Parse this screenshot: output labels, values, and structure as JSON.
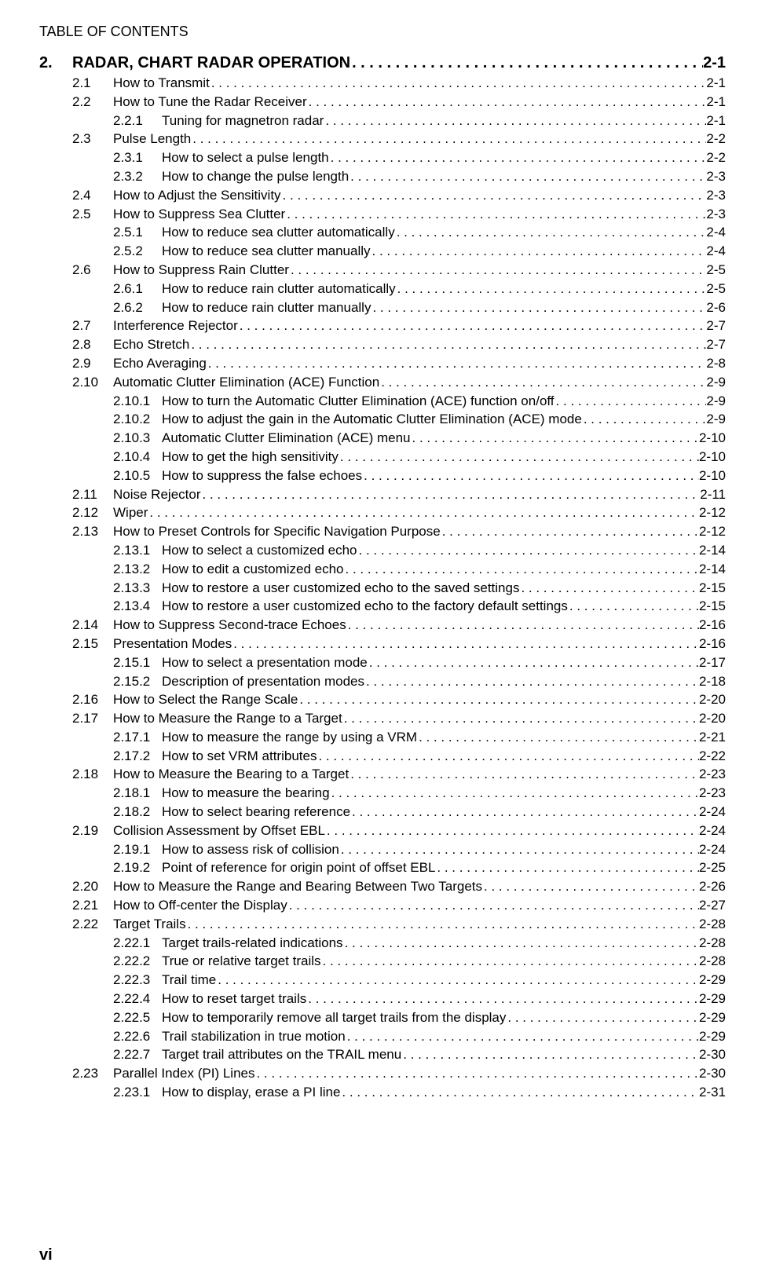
{
  "tocTitle": "TABLE OF CONTENTS",
  "pageNumber": "vi",
  "dots": ". . . . . . . . . . . . . . . . . . . . . . . . . . . . . . . . . . . . . . . . . . . . . . . . . . . . . . . . . . . . . . . . . . . . . . . . . . . . . . . . . . . . . . . . . . . . . . . . . . . . . . . . . . . . . . . . . . . . . . . . .",
  "chapter": {
    "num": "2.",
    "title": "RADAR, CHART RADAR OPERATION",
    "page": "2-1"
  },
  "entries": [
    {
      "type": "section",
      "num": "2.1",
      "title": "How to Transmit",
      "page": "2-1"
    },
    {
      "type": "section",
      "num": "2.2",
      "title": "How to Tune the Radar Receiver",
      "page": "2-1"
    },
    {
      "type": "subsection",
      "num": "2.2.1",
      "title": "Tuning for magnetron radar",
      "page": "2-1"
    },
    {
      "type": "section",
      "num": "2.3",
      "title": "Pulse Length",
      "page": "2-2"
    },
    {
      "type": "subsection",
      "num": "2.3.1",
      "title": "How to select a pulse length",
      "page": "2-2"
    },
    {
      "type": "subsection",
      "num": "2.3.2",
      "title": "How to change the pulse length",
      "page": "2-3"
    },
    {
      "type": "section",
      "num": "2.4",
      "title": "How to Adjust the Sensitivity",
      "page": "2-3"
    },
    {
      "type": "section",
      "num": "2.5",
      "title": "How to Suppress Sea Clutter",
      "page": "2-3"
    },
    {
      "type": "subsection",
      "num": "2.5.1",
      "title": "How to reduce sea clutter automatically",
      "page": "2-4"
    },
    {
      "type": "subsection",
      "num": "2.5.2",
      "title": "How to reduce sea clutter manually",
      "page": "2-4"
    },
    {
      "type": "section",
      "num": "2.6",
      "title": "How to Suppress Rain Clutter",
      "page": "2-5"
    },
    {
      "type": "subsection",
      "num": "2.6.1",
      "title": "How to reduce rain clutter automatically",
      "page": "2-5"
    },
    {
      "type": "subsection",
      "num": "2.6.2",
      "title": "How to reduce rain clutter manually",
      "page": "2-6"
    },
    {
      "type": "section",
      "num": "2.7",
      "title": "Interference Rejector",
      "page": "2-7"
    },
    {
      "type": "section",
      "num": "2.8",
      "title": "Echo Stretch",
      "page": "2-7"
    },
    {
      "type": "section",
      "num": "2.9",
      "title": "Echo Averaging",
      "page": "2-8"
    },
    {
      "type": "section",
      "num": "2.10",
      "title": "Automatic Clutter Elimination (ACE) Function",
      "page": "2-9"
    },
    {
      "type": "subsection",
      "num": "2.10.1",
      "title": "How to turn the Automatic Clutter Elimination (ACE) function on/off",
      "page": "2-9"
    },
    {
      "type": "subsection",
      "num": "2.10.2",
      "title": "How to adjust the gain in the Automatic Clutter Elimination (ACE) mode",
      "page": "2-9"
    },
    {
      "type": "subsection",
      "num": "2.10.3",
      "title": "Automatic Clutter Elimination (ACE) menu",
      "page": "2-10"
    },
    {
      "type": "subsection",
      "num": "2.10.4",
      "title": "How to get the high sensitivity",
      "page": "2-10"
    },
    {
      "type": "subsection",
      "num": "2.10.5",
      "title": "How to suppress the false echoes",
      "page": "2-10"
    },
    {
      "type": "section",
      "num": "2.11",
      "title": "Noise Rejector",
      "page": "2-11"
    },
    {
      "type": "section",
      "num": "2.12",
      "title": "Wiper",
      "page": "2-12"
    },
    {
      "type": "section",
      "num": "2.13",
      "title": "How to Preset Controls for Specific Navigation Purpose",
      "page": "2-12"
    },
    {
      "type": "subsection",
      "num": "2.13.1",
      "title": "How to select a customized echo",
      "page": "2-14"
    },
    {
      "type": "subsection",
      "num": "2.13.2",
      "title": "How to edit a customized echo",
      "page": "2-14"
    },
    {
      "type": "subsection",
      "num": "2.13.3",
      "title": "How to restore a user customized echo to the saved settings",
      "page": "2-15"
    },
    {
      "type": "subsection",
      "num": "2.13.4",
      "title": "How to restore a user customized echo to the factory default settings",
      "page": "2-15"
    },
    {
      "type": "section",
      "num": "2.14",
      "title": "How to Suppress Second-trace Echoes",
      "page": "2-16"
    },
    {
      "type": "section",
      "num": "2.15",
      "title": "Presentation Modes",
      "page": "2-16"
    },
    {
      "type": "subsection",
      "num": "2.15.1",
      "title": "How to select a presentation mode",
      "page": "2-17"
    },
    {
      "type": "subsection",
      "num": "2.15.2",
      "title": "Description of presentation modes",
      "page": "2-18"
    },
    {
      "type": "section",
      "num": "2.16",
      "title": "How to Select the Range Scale",
      "page": "2-20"
    },
    {
      "type": "section",
      "num": "2.17",
      "title": "How to Measure the Range to a Target",
      "page": "2-20"
    },
    {
      "type": "subsection",
      "num": "2.17.1",
      "title": "How to measure the range by using a VRM",
      "page": "2-21"
    },
    {
      "type": "subsection",
      "num": "2.17.2",
      "title": "How to set VRM attributes",
      "page": "2-22"
    },
    {
      "type": "section",
      "num": "2.18",
      "title": "How to Measure the Bearing to a Target",
      "page": "2-23"
    },
    {
      "type": "subsection",
      "num": "2.18.1",
      "title": "How to measure the bearing",
      "page": "2-23"
    },
    {
      "type": "subsection",
      "num": "2.18.2",
      "title": "How to select bearing reference",
      "page": "2-24"
    },
    {
      "type": "section",
      "num": "2.19",
      "title": "Collision Assessment by Offset EBL",
      "page": "2-24"
    },
    {
      "type": "subsection",
      "num": "2.19.1",
      "title": "How to assess risk of collision ",
      "page": "2-24"
    },
    {
      "type": "subsection",
      "num": "2.19.2",
      "title": "Point of reference for origin point of offset EBL",
      "page": "2-25"
    },
    {
      "type": "section",
      "num": "2.20",
      "title": "How to Measure the Range and Bearing Between Two Targets",
      "page": "2-26"
    },
    {
      "type": "section",
      "num": "2.21",
      "title": "How to Off-center the Display",
      "page": "2-27"
    },
    {
      "type": "section",
      "num": "2.22",
      "title": "Target Trails",
      "page": "2-28"
    },
    {
      "type": "subsection",
      "num": "2.22.1",
      "title": "Target trails-related indications",
      "page": "2-28"
    },
    {
      "type": "subsection",
      "num": "2.22.2",
      "title": "True or relative target trails",
      "page": "2-28"
    },
    {
      "type": "subsection",
      "num": "2.22.3",
      "title": "Trail time",
      "page": "2-29"
    },
    {
      "type": "subsection",
      "num": "2.22.4",
      "title": "How to reset target trails",
      "page": "2-29"
    },
    {
      "type": "subsection",
      "num": "2.22.5",
      "title": "How to temporarily remove all target trails from the display",
      "page": "2-29"
    },
    {
      "type": "subsection",
      "num": "2.22.6",
      "title": "Trail stabilization in true motion",
      "page": "2-29"
    },
    {
      "type": "subsection",
      "num": "2.22.7",
      "title": "Target trail attributes on the TRAIL menu",
      "page": "2-30"
    },
    {
      "type": "section",
      "num": "2.23",
      "title": "Parallel Index (PI) Lines",
      "page": "2-30"
    },
    {
      "type": "subsection",
      "num": "2.23.1",
      "title": "How to display, erase a PI line",
      "page": "2-31"
    }
  ]
}
